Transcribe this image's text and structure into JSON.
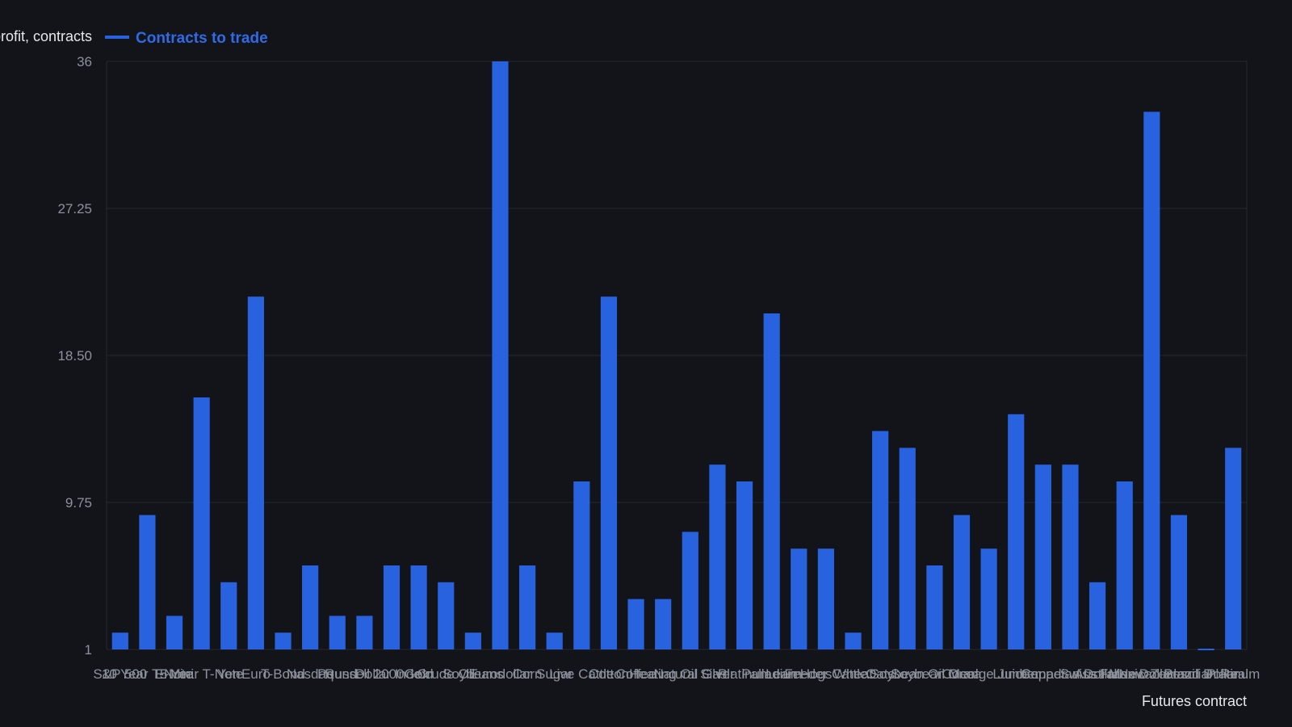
{
  "chart_data": {
    "type": "bar",
    "ylabel": "Net profit, contracts",
    "xlabel": "Futures contract",
    "ylim": [
      1,
      36
    ],
    "yticks": [
      "1",
      "9.75",
      "18.50",
      "27.25",
      "36"
    ],
    "grid": true,
    "legend_position": "top-left",
    "series": [
      {
        "name": "Contracts to trade",
        "color": "#2962de",
        "values": [
          2,
          9,
          3,
          16,
          5,
          22,
          2,
          6,
          3,
          3,
          6,
          6,
          5,
          2,
          36,
          6,
          2,
          11,
          22,
          4,
          4,
          8,
          12,
          11,
          21,
          7,
          7,
          2,
          14,
          13,
          6,
          9,
          7,
          15,
          12,
          12,
          5,
          11,
          33,
          9,
          1,
          13
        ]
      }
    ],
    "categories": [
      "S&P 500",
      "10 Year T-Note",
      "E-Mini",
      "5 Year T-Note",
      "Yen",
      "Euro",
      "T-Bond",
      "Nasdaq",
      "Pound",
      "Russell 2000",
      "Dollar Index",
      "Gold",
      "Crude Oil",
      "Soybeans",
      "Eurodollar",
      "Corn",
      "Sugar",
      "Live Cattle",
      "Cotton",
      "Coffee",
      "Heating Oil",
      "Natural Gas",
      "Silver",
      "Platinum",
      "Palladium",
      "Lean Hogs",
      "Feeder Cattle",
      "Wheat",
      "Oats",
      "Soybean Oil",
      "Soybean Meal",
      "Cocoa",
      "Orange Juice",
      "Lumber",
      "Copper",
      "Canadian Dollar",
      "Swiss Franc",
      "Australian Dollar",
      "Mexican Peso",
      "New Zealand Dollar",
      "Brazilian Real",
      "Platinum"
    ]
  }
}
